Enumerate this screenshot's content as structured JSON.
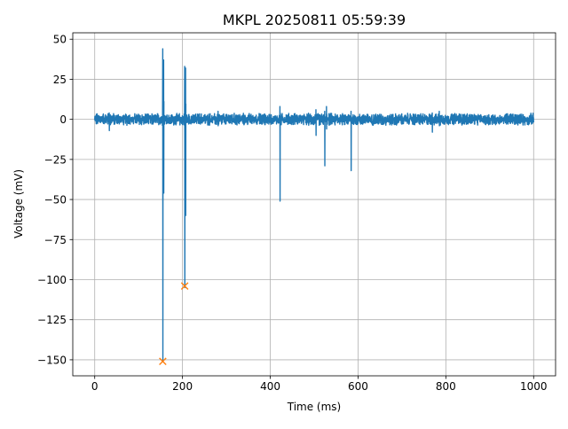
{
  "chart_data": {
    "type": "line",
    "title": "MKPL 20250811 05:59:39",
    "xlabel": "Time (ms)",
    "ylabel": "Voltage (mV)",
    "xlim": [
      -50,
      1050
    ],
    "ylim": [
      -160,
      54
    ],
    "xticks": [
      0,
      200,
      400,
      600,
      800,
      1000
    ],
    "yticks": [
      -150,
      -125,
      -100,
      -75,
      -50,
      -25,
      0,
      25,
      50
    ],
    "ytick_labels": [
      "−150",
      "−125",
      "−100",
      "−75",
      "−50",
      "−25",
      "0",
      "25",
      "50"
    ],
    "grid": true,
    "series": [
      {
        "name": "",
        "color": "#1f77b4",
        "baseline_noise_amplitude": 3,
        "x_range": [
          0,
          1000
        ],
        "events": [
          {
            "x": 33,
            "min": -7,
            "max": 4
          },
          {
            "x": 155,
            "min": -151,
            "max": 44
          },
          {
            "x": 157,
            "min": -46,
            "max": 37
          },
          {
            "x": 205,
            "min": -105,
            "max": 33
          },
          {
            "x": 207,
            "min": -60,
            "max": 32
          },
          {
            "x": 281,
            "min": -4,
            "max": 5
          },
          {
            "x": 422,
            "min": -51,
            "max": 8
          },
          {
            "x": 504,
            "min": -10,
            "max": 6
          },
          {
            "x": 524,
            "min": -29,
            "max": 5
          },
          {
            "x": 528,
            "min": -6,
            "max": 8
          },
          {
            "x": 584,
            "min": -32,
            "max": 5
          },
          {
            "x": 769,
            "min": -8,
            "max": 4
          },
          {
            "x": 785,
            "min": -4,
            "max": 5
          }
        ]
      }
    ],
    "markers": {
      "symbol": "x",
      "color": "#ff7f0e",
      "points": [
        {
          "x": 155,
          "y": -151
        },
        {
          "x": 205,
          "y": -104
        }
      ]
    }
  }
}
